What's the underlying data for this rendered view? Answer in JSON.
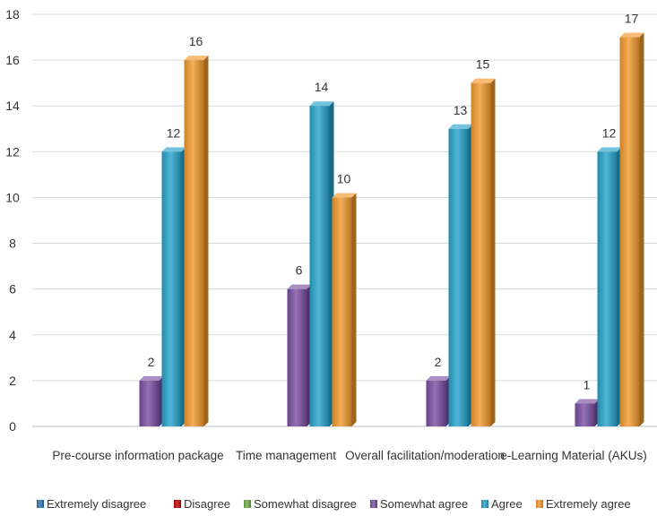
{
  "chart_data": {
    "type": "bar",
    "ylim": [
      0,
      18
    ],
    "yticks": [
      0,
      2,
      4,
      6,
      8,
      10,
      12,
      14,
      16,
      18
    ],
    "grid": true,
    "legend_position": "bottom",
    "categories": [
      "Pre-course information package",
      "Time management",
      "Overall facilitation/moderation",
      "e-Learning Material (AKUs)"
    ],
    "series": [
      {
        "name": "Extremely disagree",
        "color": "#2e75b6",
        "values": [
          0,
          0,
          0,
          0
        ]
      },
      {
        "name": "Disagree",
        "color": "#c00000",
        "values": [
          0,
          0,
          0,
          0
        ]
      },
      {
        "name": "Somewhat disagree",
        "color": "#70ad47",
        "values": [
          0,
          0,
          0,
          0
        ]
      },
      {
        "name": "Somewhat agree",
        "color": "#7a4fa3",
        "values": [
          2,
          6,
          2,
          1
        ]
      },
      {
        "name": "Agree",
        "color": "#27a3cc",
        "values": [
          12,
          14,
          13,
          12
        ]
      },
      {
        "name": "Extremely agree",
        "color": "#f29a2e",
        "values": [
          16,
          10,
          15,
          17
        ]
      }
    ]
  }
}
